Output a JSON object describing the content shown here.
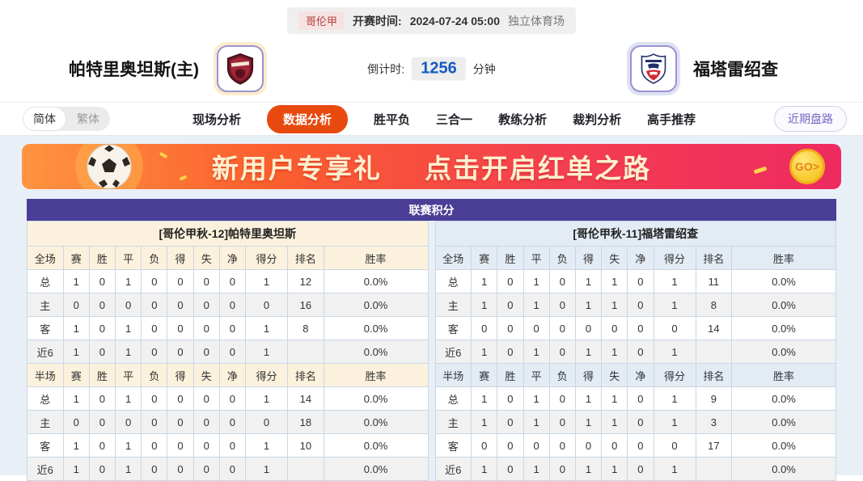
{
  "match_header": {
    "league": "哥伦甲",
    "start_time_label": "开赛时间:",
    "start_time": "2024-07-24 05:00",
    "venue": "独立体育场",
    "home_team": "帕特里奥坦斯(主)",
    "away_team": "福塔雷绍查",
    "countdown_label": "倒计时:",
    "countdown_value": "1256",
    "countdown_unit": "分钟"
  },
  "nav": {
    "lang_simplified": "简体",
    "lang_traditional": "繁体",
    "tabs": [
      {
        "id": "live-analysis",
        "label": "现场分析",
        "active": false
      },
      {
        "id": "data-analysis",
        "label": "数据分析",
        "active": true
      },
      {
        "id": "win-draw-lose",
        "label": "胜平负",
        "active": false
      },
      {
        "id": "three-in-one",
        "label": "三合一",
        "active": false
      },
      {
        "id": "coach-analysis",
        "label": "教练分析",
        "active": false
      },
      {
        "id": "referee-analysis",
        "label": "裁判分析",
        "active": false
      },
      {
        "id": "expert-picks",
        "label": "高手推荐",
        "active": false
      }
    ],
    "recent_button": "近期盘路"
  },
  "banner": {
    "headline_1": "新用户专享礼",
    "headline_2": "点击开启红单之路",
    "go_label": "GO>"
  },
  "icons": {
    "home_logo": "shield-crest-icon",
    "away_logo": "team-crest-icon",
    "ball": "soccer-ball-icon",
    "go": "go-coin-icon"
  },
  "colors": {
    "accent_orange": "#e8490f",
    "title_purple": "#4a3e96",
    "countdown_blue": "#1659c2",
    "home_header_bg": "#fbf1dc",
    "away_header_bg": "#e3ebf4",
    "home_row_red": "#cc2b2b",
    "away_row_blue": "#1f3fc4",
    "page_bg": "#e9eff7"
  },
  "table": {
    "title": "联赛积分",
    "columns_full": [
      "全场",
      "赛",
      "胜",
      "平",
      "负",
      "得",
      "失",
      "净",
      "得分",
      "排名",
      "胜率"
    ],
    "columns_half": [
      "半场",
      "赛",
      "胜",
      "平",
      "负",
      "得",
      "失",
      "净",
      "得分",
      "排名",
      "胜率"
    ],
    "home": {
      "header": "[哥伦甲秋-12]帕特里奥坦斯",
      "full_rows": [
        {
          "label": "总",
          "values": [
            "1",
            "0",
            "1",
            "0",
            "0",
            "0",
            "0",
            "1",
            "12",
            "0.0%"
          ]
        },
        {
          "label": "主",
          "values": [
            "0",
            "0",
            "0",
            "0",
            "0",
            "0",
            "0",
            "0",
            "16",
            "0.0%"
          ]
        },
        {
          "label": "客",
          "values": [
            "1",
            "0",
            "1",
            "0",
            "0",
            "0",
            "0",
            "1",
            "8",
            "0.0%"
          ]
        },
        {
          "label": "近6",
          "values": [
            "1",
            "0",
            "1",
            "0",
            "0",
            "0",
            "0",
            "1",
            "",
            "0.0%"
          ]
        }
      ],
      "half_rows": [
        {
          "label": "总",
          "values": [
            "1",
            "0",
            "1",
            "0",
            "0",
            "0",
            "0",
            "1",
            "14",
            "0.0%"
          ]
        },
        {
          "label": "主",
          "values": [
            "0",
            "0",
            "0",
            "0",
            "0",
            "0",
            "0",
            "0",
            "18",
            "0.0%"
          ]
        },
        {
          "label": "客",
          "values": [
            "1",
            "0",
            "1",
            "0",
            "0",
            "0",
            "0",
            "1",
            "10",
            "0.0%"
          ]
        },
        {
          "label": "近6",
          "values": [
            "1",
            "0",
            "1",
            "0",
            "0",
            "0",
            "0",
            "1",
            "",
            "0.0%"
          ]
        }
      ]
    },
    "away": {
      "header": "[哥伦甲秋-11]福塔雷绍查",
      "full_rows": [
        {
          "label": "总",
          "values": [
            "1",
            "0",
            "1",
            "0",
            "1",
            "1",
            "0",
            "1",
            "11",
            "0.0%"
          ]
        },
        {
          "label": "主",
          "values": [
            "1",
            "0",
            "1",
            "0",
            "1",
            "1",
            "0",
            "1",
            "8",
            "0.0%"
          ]
        },
        {
          "label": "客",
          "values": [
            "0",
            "0",
            "0",
            "0",
            "0",
            "0",
            "0",
            "0",
            "14",
            "0.0%"
          ]
        },
        {
          "label": "近6",
          "values": [
            "1",
            "0",
            "1",
            "0",
            "1",
            "1",
            "0",
            "1",
            "",
            "0.0%"
          ]
        }
      ],
      "half_rows": [
        {
          "label": "总",
          "values": [
            "1",
            "0",
            "1",
            "0",
            "1",
            "1",
            "0",
            "1",
            "9",
            "0.0%"
          ]
        },
        {
          "label": "主",
          "values": [
            "1",
            "0",
            "1",
            "0",
            "1",
            "1",
            "0",
            "1",
            "3",
            "0.0%"
          ]
        },
        {
          "label": "客",
          "values": [
            "0",
            "0",
            "0",
            "0",
            "0",
            "0",
            "0",
            "0",
            "17",
            "0.0%"
          ]
        },
        {
          "label": "近6",
          "values": [
            "1",
            "0",
            "1",
            "0",
            "1",
            "1",
            "0",
            "1",
            "",
            "0.0%"
          ]
        }
      ]
    }
  }
}
